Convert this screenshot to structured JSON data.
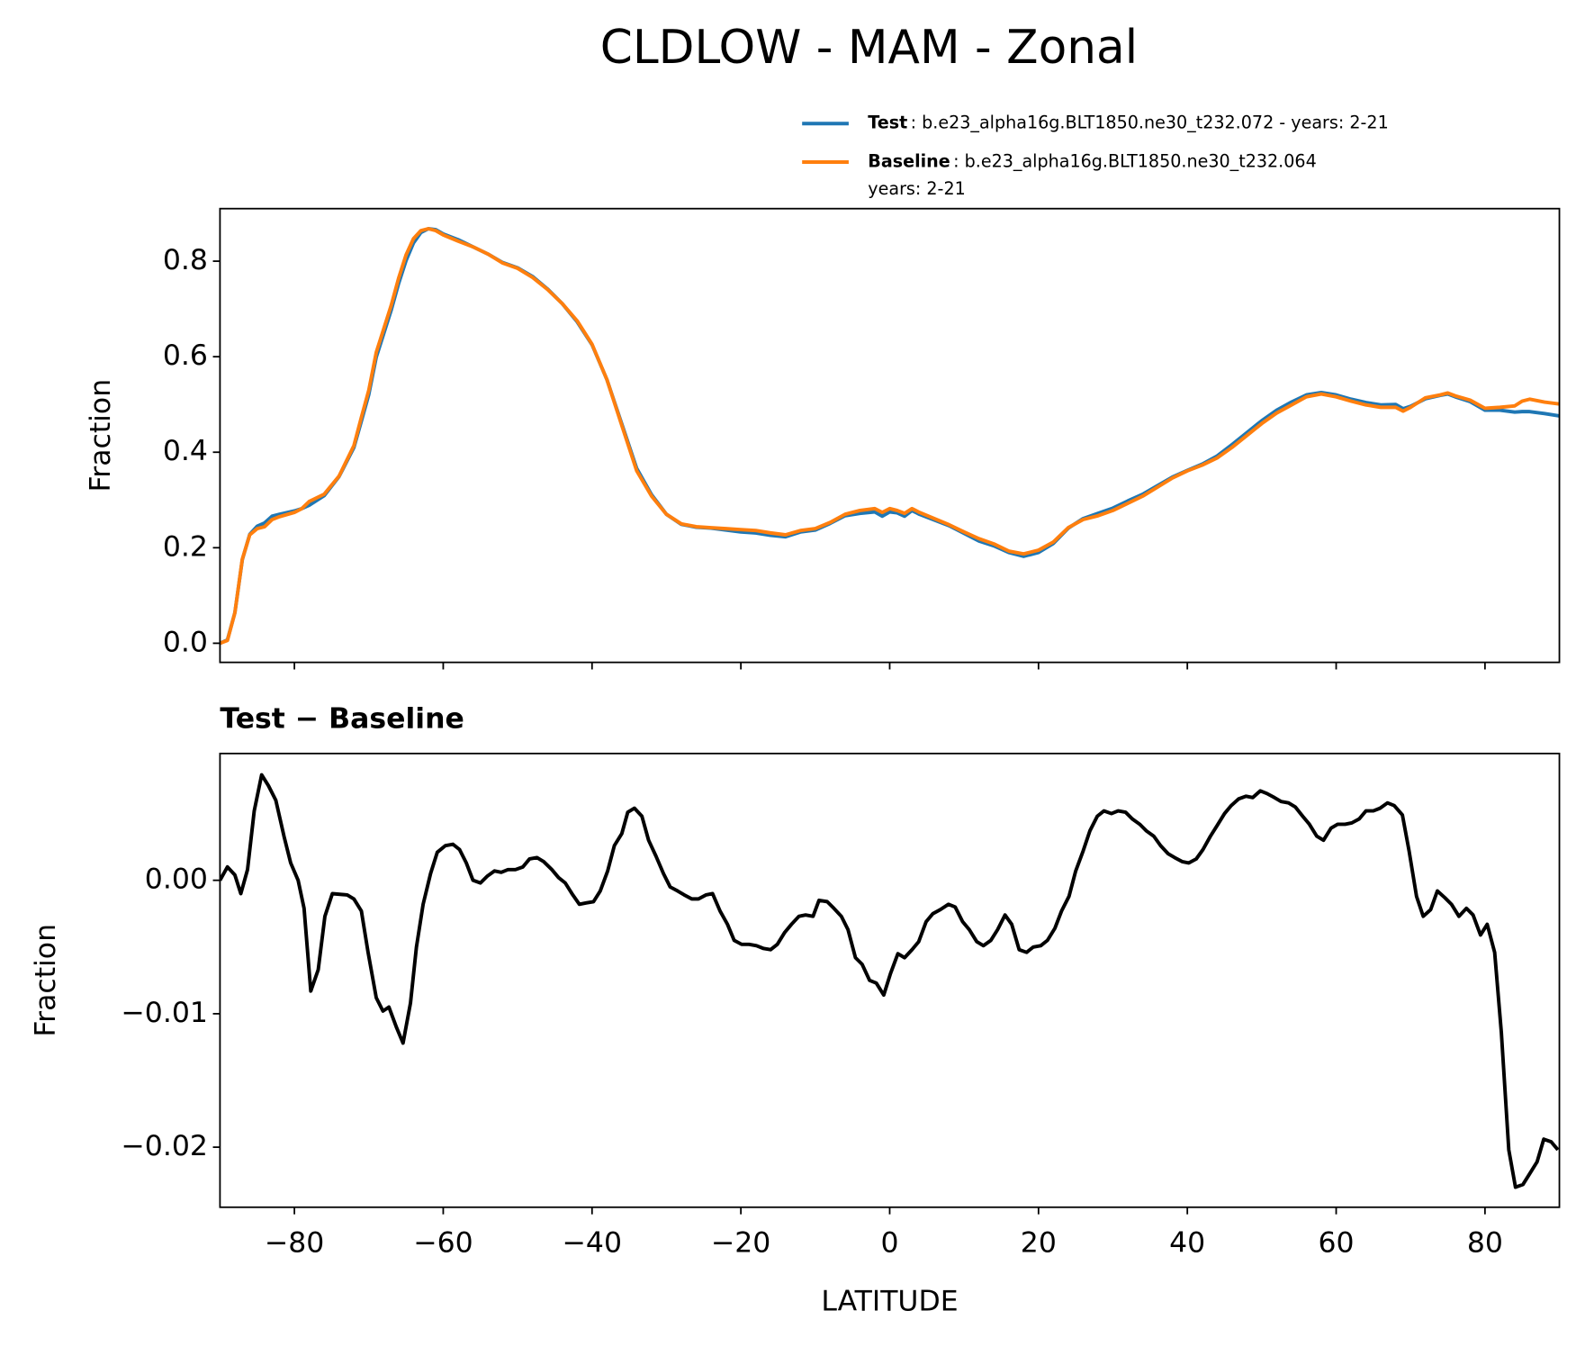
{
  "title": "CLDLOW - MAM - Zonal",
  "chart_data": [
    {
      "type": "line",
      "ylabel": "Fraction",
      "xlim": [
        -90,
        90
      ],
      "xticks": [
        -80,
        -60,
        -40,
        -20,
        0,
        20,
        40,
        60,
        80
      ],
      "xticklabels": false,
      "ylim": [
        -0.04,
        0.91
      ],
      "yticks": [
        {
          "value": 0,
          "label": "0.0"
        },
        0.2,
        0.4,
        0.6,
        0.8
      ],
      "legend": "above-right",
      "x": [
        -90,
        -89,
        -88,
        -87,
        -86,
        -85,
        -84,
        -83,
        -82,
        -80,
        -79,
        -78,
        -76,
        -74,
        -72,
        -71,
        -70,
        -69,
        -68,
        -67,
        -66,
        -65,
        -64,
        -63,
        -62,
        -61,
        -60,
        -58,
        -56,
        -54,
        -52,
        -50,
        -48,
        -46,
        -44,
        -42,
        -40,
        -38,
        -36,
        -34,
        -32,
        -30,
        -28,
        -26,
        -24,
        -22,
        -20,
        -18,
        -16,
        -14,
        -12,
        -10,
        -8,
        -6,
        -4,
        -2,
        -1,
        0,
        1,
        2,
        3,
        4,
        6,
        8,
        10,
        12,
        14,
        16,
        18,
        20,
        22,
        24,
        26,
        28,
        30,
        32,
        34,
        36,
        38,
        40,
        42,
        44,
        46,
        48,
        50,
        52,
        54,
        56,
        58,
        60,
        62,
        64,
        66,
        68,
        69,
        70,
        72,
        74,
        75,
        76,
        78,
        80,
        82,
        84,
        85,
        86,
        88,
        90
      ],
      "series": [
        {
          "name": "Test",
          "description": [
            ": b.e23_alpha16g.BLT1850.ne30_t232.072 - years: 2-21"
          ],
          "color": "#1f77b4",
          "values": [
            0,
            0.007,
            0.064,
            0.175,
            0.228,
            0.245,
            0.252,
            0.266,
            0.27,
            0.277,
            0.282,
            0.289,
            0.309,
            0.349,
            0.41,
            0.465,
            0.521,
            0.599,
            0.648,
            0.697,
            0.753,
            0.801,
            0.838,
            0.86,
            0.868,
            0.866,
            0.857,
            0.845,
            0.83,
            0.815,
            0.797,
            0.786,
            0.768,
            0.742,
            0.711,
            0.673,
            0.625,
            0.552,
            0.459,
            0.366,
            0.311,
            0.27,
            0.249,
            0.243,
            0.241,
            0.237,
            0.233,
            0.231,
            0.226,
            0.223,
            0.233,
            0.237,
            0.251,
            0.267,
            0.272,
            0.275,
            0.266,
            0.275,
            0.273,
            0.266,
            0.278,
            0.27,
            0.258,
            0.246,
            0.23,
            0.214,
            0.204,
            0.19,
            0.182,
            0.19,
            0.209,
            0.241,
            0.261,
            0.272,
            0.283,
            0.298,
            0.312,
            0.33,
            0.348,
            0.362,
            0.375,
            0.392,
            0.416,
            0.441,
            0.466,
            0.488,
            0.505,
            0.52,
            0.525,
            0.52,
            0.511,
            0.504,
            0.499,
            0.5,
            0.491,
            0.496,
            0.512,
            0.519,
            0.522,
            0.516,
            0.506,
            0.488,
            0.488,
            0.484,
            0.485,
            0.485,
            0.481,
            0.476
          ]
        },
        {
          "name": "Baseline",
          "description": [
            ": b.e23_alpha16g.BLT1850.ne30_t232.064",
            "years: 2-21"
          ],
          "color": "#ff7f0e",
          "values": [
            0,
            0.006,
            0.064,
            0.176,
            0.227,
            0.24,
            0.244,
            0.259,
            0.265,
            0.274,
            0.282,
            0.297,
            0.312,
            0.35,
            0.414,
            0.473,
            0.53,
            0.609,
            0.658,
            0.707,
            0.764,
            0.813,
            0.847,
            0.864,
            0.868,
            0.864,
            0.855,
            0.842,
            0.83,
            0.815,
            0.796,
            0.785,
            0.766,
            0.741,
            0.711,
            0.675,
            0.626,
            0.552,
            0.456,
            0.361,
            0.308,
            0.27,
            0.25,
            0.244,
            0.242,
            0.24,
            0.238,
            0.236,
            0.231,
            0.227,
            0.236,
            0.24,
            0.253,
            0.27,
            0.278,
            0.282,
            0.274,
            0.282,
            0.278,
            0.272,
            0.282,
            0.274,
            0.261,
            0.248,
            0.233,
            0.219,
            0.208,
            0.193,
            0.187,
            0.195,
            0.212,
            0.242,
            0.259,
            0.267,
            0.278,
            0.293,
            0.308,
            0.327,
            0.346,
            0.361,
            0.373,
            0.388,
            0.41,
            0.435,
            0.46,
            0.482,
            0.499,
            0.516,
            0.522,
            0.516,
            0.507,
            0.499,
            0.494,
            0.494,
            0.486,
            0.494,
            0.514,
            0.52,
            0.524,
            0.518,
            0.509,
            0.492,
            0.494,
            0.497,
            0.507,
            0.511,
            0.505,
            0.501
          ]
        }
      ]
    },
    {
      "type": "line",
      "title": "Test − Baseline",
      "xlabel": "LATITUDE",
      "ylabel": "Fraction",
      "xlim": [
        -90,
        90
      ],
      "xticks": [
        {
          "value": -80,
          "label": "−80"
        },
        {
          "value": -60,
          "label": "−60"
        },
        {
          "value": -40,
          "label": "−40"
        },
        {
          "value": -20,
          "label": "−20"
        },
        0,
        20,
        40,
        60,
        80
      ],
      "ylim": [
        -0.0245,
        0.0095
      ],
      "yticks": [
        {
          "value": -0.02,
          "label": "−0.02"
        },
        {
          "value": -0.01,
          "label": "−0.01"
        },
        {
          "value": 0,
          "label": "0.00"
        }
      ],
      "x": [
        -90,
        -89,
        -88,
        -87.2,
        -86.3,
        -85.4,
        -84.4,
        -83.5,
        -82.5,
        -81.4,
        -80.5,
        -79.5,
        -78.7,
        -77.8,
        -76.8,
        -75.9,
        -74.9,
        -72.9,
        -72,
        -71,
        -70.1,
        -69,
        -68.1,
        -67.3,
        -66.3,
        -65.4,
        -64.4,
        -63.6,
        -62.7,
        -61.7,
        -60.8,
        -59.7,
        -58.7,
        -57.8,
        -56.9,
        -56,
        -55,
        -54.1,
        -53.1,
        -52.2,
        -51.3,
        -50.3,
        -49.3,
        -48.4,
        -47.4,
        -46.5,
        -45.4,
        -44.5,
        -43.6,
        -42.7,
        -41.7,
        -40.8,
        -39.8,
        -38.9,
        -37.9,
        -37,
        -36,
        -35.2,
        -34.3,
        -33.3,
        -32.4,
        -31.4,
        -30.4,
        -29.5,
        -28.5,
        -27.6,
        -26.6,
        -25.7,
        -24.7,
        -23.8,
        -22.8,
        -21.8,
        -20.9,
        -19.9,
        -18.9,
        -17.9,
        -17,
        -16,
        -15.1,
        -14.1,
        -13.2,
        -12.2,
        -11.3,
        -10.3,
        -9.5,
        -8.4,
        -7.5,
        -6.5,
        -5.6,
        -4.6,
        -3.7,
        -2.7,
        -1.8,
        -0.8,
        0.1,
        1.1,
        2,
        3,
        3.9,
        4.9,
        5.8,
        6.8,
        7.9,
        8.8,
        9.8,
        10.7,
        11.7,
        12.6,
        13.6,
        14.5,
        15.5,
        16.4,
        17.4,
        18.4,
        19.3,
        20.3,
        21.2,
        22.2,
        23.1,
        24.1,
        25,
        26,
        26.9,
        27.9,
        28.8,
        29.8,
        30.7,
        31.7,
        32.6,
        33.6,
        34.5,
        35.5,
        36.4,
        37.4,
        38.3,
        39.3,
        40.2,
        41.2,
        42.1,
        43.1,
        44,
        45,
        45.9,
        46.9,
        47.9,
        48.8,
        49.8,
        50.7,
        51.7,
        52.6,
        53.6,
        54.5,
        55.5,
        56.4,
        57.4,
        58.3,
        59.3,
        60.2,
        61.2,
        62.1,
        63.1,
        64,
        65,
        65.9,
        66.9,
        67.8,
        68.9,
        69.8,
        70.8,
        71.7,
        72.7,
        73.6,
        74.6,
        75.5,
        76.5,
        77.5,
        78.4,
        79.4,
        80.3,
        81.3,
        82.2,
        83.2,
        84.1,
        85.1,
        86,
        87,
        87.9,
        88.9,
        89.8
      ],
      "color": "#000000",
      "values": [
        0,
        0.001,
        0.0004,
        -0.001,
        0.0008,
        0.0052,
        0.0079,
        0.0071,
        0.006,
        0.0033,
        0.0013,
        0,
        -0.0021,
        -0.0083,
        -0.0067,
        -0.0027,
        -0.001,
        -0.0011,
        -0.0014,
        -0.0023,
        -0.0054,
        -0.0088,
        -0.0098,
        -0.0095,
        -0.011,
        -0.0122,
        -0.0092,
        -0.005,
        -0.0018,
        0.0005,
        0.0021,
        0.0026,
        0.0027,
        0.0023,
        0.0013,
        0,
        -0.0002,
        0.0003,
        0.0007,
        0.0006,
        0.0008,
        0.0008,
        0.001,
        0.0016,
        0.0017,
        0.0014,
        0.0008,
        0.0002,
        -0.0002,
        -0.001,
        -0.0018,
        -0.0017,
        -0.0016,
        -0.0008,
        0.0007,
        0.0026,
        0.0035,
        0.0051,
        0.0054,
        0.0048,
        0.003,
        0.0018,
        0.0005,
        -0.0005,
        -0.0008,
        -0.0011,
        -0.0014,
        -0.0014,
        -0.0011,
        -0.001,
        -0.0023,
        -0.0033,
        -0.0045,
        -0.0048,
        -0.0048,
        -0.0049,
        -0.0051,
        -0.0052,
        -0.0048,
        -0.0039,
        -0.0033,
        -0.0027,
        -0.0026,
        -0.0027,
        -0.0015,
        -0.0016,
        -0.0021,
        -0.0027,
        -0.0037,
        -0.0058,
        -0.0063,
        -0.0075,
        -0.0077,
        -0.0086,
        -0.007,
        -0.0055,
        -0.0058,
        -0.0052,
        -0.0046,
        -0.0031,
        -0.0025,
        -0.0022,
        -0.0018,
        -0.002,
        -0.0031,
        -0.0037,
        -0.0046,
        -0.0049,
        -0.0045,
        -0.0037,
        -0.0026,
        -0.0033,
        -0.0052,
        -0.0054,
        -0.005,
        -0.0049,
        -0.0045,
        -0.0036,
        -0.0023,
        -0.0012,
        0.0007,
        0.0022,
        0.0037,
        0.0048,
        0.0052,
        0.005,
        0.0052,
        0.0051,
        0.0046,
        0.0042,
        0.0037,
        0.0033,
        0.0026,
        0.002,
        0.0017,
        0.0014,
        0.0013,
        0.0016,
        0.0023,
        0.0033,
        0.0041,
        0.005,
        0.0056,
        0.0061,
        0.0063,
        0.0062,
        0.0067,
        0.0065,
        0.0062,
        0.0059,
        0.0058,
        0.0055,
        0.0048,
        0.0042,
        0.0033,
        0.003,
        0.0039,
        0.0042,
        0.0042,
        0.0043,
        0.0046,
        0.0052,
        0.0052,
        0.0054,
        0.0058,
        0.0056,
        0.0049,
        0.0022,
        -0.0012,
        -0.0027,
        -0.0022,
        -0.0008,
        -0.0013,
        -0.0018,
        -0.0027,
        -0.0021,
        -0.0026,
        -0.0041,
        -0.0033,
        -0.0054,
        -0.0114,
        -0.0202,
        -0.023,
        -0.0228,
        -0.022,
        -0.0211,
        -0.0194,
        -0.0196,
        -0.0202
      ]
    }
  ]
}
